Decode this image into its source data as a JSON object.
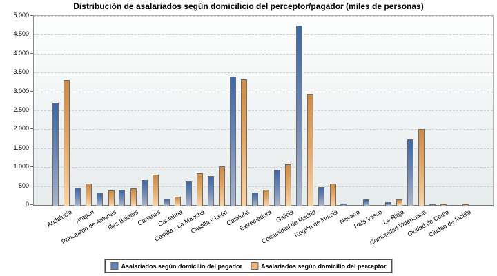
{
  "title": "Distribución de asalariados según domicilicio del perceptor/pagador (miles de personas)",
  "y_axis": {
    "min": 0,
    "max": 5000,
    "step": 500,
    "tick_labels": [
      "0",
      "500",
      "1.000",
      "1.500",
      "2.000",
      "2.500",
      "3.000",
      "3.500",
      "4.000",
      "4.500",
      "5.000"
    ]
  },
  "legend": {
    "items": [
      {
        "label": "Asalariados según domicilio del pagador",
        "color": "#5f83b9"
      },
      {
        "label": "Asalariados según domicilio del perceptor",
        "color": "#efb274"
      }
    ]
  },
  "chart_data": {
    "type": "bar",
    "title": "Distribución de asalariados según domicilicio del perceptor/pagador (miles de personas)",
    "xlabel": "",
    "ylabel": "",
    "ylim": [
      0,
      5000
    ],
    "grid": true,
    "legend_position": "bottom",
    "categories": [
      "Andalucía",
      "Aragón",
      "Principado de Asturias",
      "Illes Balears",
      "Canarias",
      "Cantabria",
      "Castilla - La Mancha",
      "Castilla y León",
      "Cataluña",
      "Extremadura",
      "Galicia",
      "Comunidad de Madrid",
      "Región de Murcia",
      "Navarra",
      "País Vasco",
      "La Rioja",
      "Comunidad Valenciana",
      "Ciudad de Ceuta",
      "Ciudad de Melilla"
    ],
    "series": [
      {
        "name": "Asalariados según domicilio del pagador",
        "color": "#5f83b9",
        "gradient": [
          "#3e68a8",
          "#a9b6ca"
        ],
        "values": [
          2710,
          480,
          330,
          420,
          680,
          190,
          630,
          780,
          3420,
          340,
          950,
          4770,
          490,
          50,
          170,
          100,
          1760,
          40,
          20
        ]
      },
      {
        "name": "Asalariados según domicilio del perceptor",
        "color": "#efb274",
        "gradient": [
          "#cf8a44",
          "#fbd3a2"
        ],
        "values": [
          3320,
          580,
          410,
          460,
          830,
          230,
          850,
          1040,
          3340,
          420,
          1090,
          2960,
          590,
          0,
          0,
          160,
          2020,
          30,
          35
        ]
      }
    ]
  }
}
